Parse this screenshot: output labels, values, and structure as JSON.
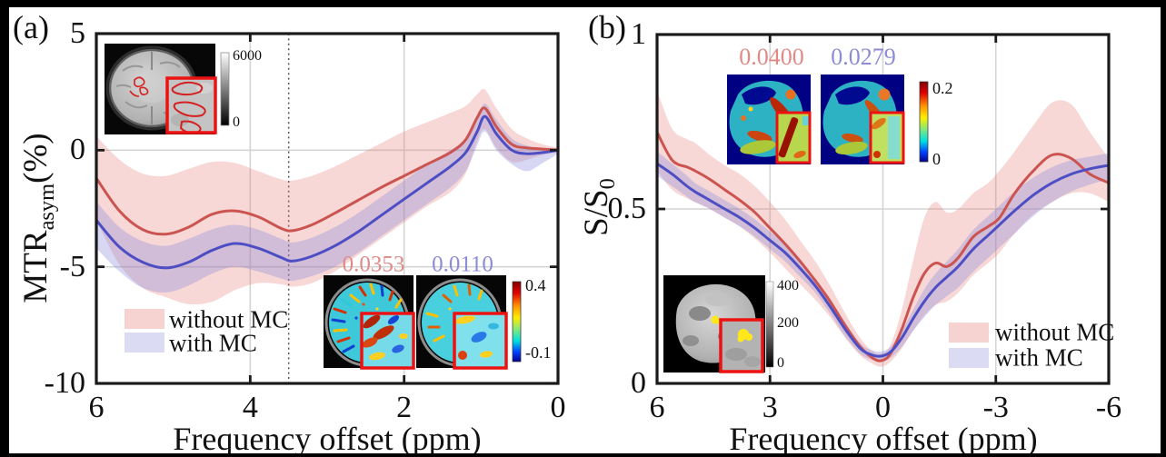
{
  "figure": {
    "panel_a": {
      "tag": "(a)",
      "x_axis_label": "Frequency offset (ppm)",
      "y_axis_label": {
        "base": "MTR",
        "sub": "asym",
        "unit": "(%)"
      },
      "legend": {
        "without": "without MC",
        "with": "with MC"
      },
      "anatomy_inset": {
        "cbar_max": "6000",
        "cbar_min": "0"
      },
      "map_inset": {
        "value_without": "0.0353",
        "value_with": "0.0110",
        "cbar_max": "0.4",
        "cbar_min": "-0.1"
      }
    },
    "panel_b": {
      "tag": "(b)",
      "x_axis_label": "Frequency offset (ppm)",
      "y_axis_label": {
        "base": "S/S",
        "sub": "0"
      },
      "legend": {
        "without": "without MC",
        "with": "with MC"
      },
      "map_inset": {
        "value_without": "0.0400",
        "value_with": "0.0279",
        "cbar_max": "0.2",
        "cbar_min": "0"
      },
      "anatomy_inset": {
        "cbar_max": "400",
        "cbar_mid": "200",
        "cbar_min": "0"
      }
    },
    "colors": {
      "line_without_mc": "#cc5450",
      "line_with_mc": "#4e4ec4",
      "band_without_mc": "rgba(227,125,120,0.30)",
      "band_with_mc": "rgba(135,135,222,0.33)",
      "value_text_without": "#e08a88",
      "value_text_with": "#8c8cd6"
    }
  },
  "chart_data": [
    {
      "id": "a",
      "type": "line",
      "title": "",
      "xlabel": "Frequency offset (ppm)",
      "ylabel": "MTR_asym (%)",
      "xlim": [
        6,
        0
      ],
      "ylim": [
        -10,
        5
      ],
      "xticks": [
        6,
        4,
        2,
        0
      ],
      "xtick_labels": [
        "6",
        "4",
        "2",
        "0"
      ],
      "yticks": [
        5,
        0,
        -5,
        -10
      ],
      "ytick_labels": [
        "5",
        "0",
        "-5",
        "-10"
      ],
      "xgrid": [
        4,
        2
      ],
      "ygrid": [
        0,
        -5
      ],
      "vline_dashed": 3.5,
      "legend_position": "lower left",
      "x": [
        6,
        5.7,
        5.4,
        5.1,
        4.8,
        4.5,
        4.2,
        3.9,
        3.6,
        3.45,
        3.2,
        2.9,
        2.6,
        2.3,
        2.0,
        1.7,
        1.4,
        1.2,
        1.05,
        0.95,
        0.8,
        0.6,
        0.4,
        0.2,
        0
      ],
      "series": [
        {
          "name": "without MC",
          "color": "#cc5450",
          "band_color": "rgba(227,125,120,0.30)",
          "values": [
            -1.2,
            -2.6,
            -3.4,
            -3.6,
            -3.3,
            -2.75,
            -2.6,
            -2.85,
            -3.35,
            -3.45,
            -3.2,
            -2.7,
            -2.15,
            -1.6,
            -1.1,
            -0.6,
            -0.1,
            0.45,
            1.4,
            1.8,
            1.0,
            0.25,
            0.1,
            0.05,
            0
          ],
          "band_upper": [
            0.6,
            -0.4,
            -1.0,
            -1.1,
            -0.8,
            -0.5,
            -0.55,
            -0.9,
            -1.25,
            -1.3,
            -1.1,
            -0.7,
            -0.2,
            0.3,
            0.8,
            1.2,
            1.6,
            1.9,
            2.4,
            2.6,
            1.8,
            0.9,
            0.5,
            0.25,
            0.1
          ],
          "band_lower": [
            -3.0,
            -4.9,
            -5.9,
            -6.3,
            -6.6,
            -6.5,
            -6.0,
            -5.7,
            -5.75,
            -5.85,
            -5.7,
            -5.2,
            -4.5,
            -3.8,
            -3.1,
            -2.4,
            -1.8,
            -1.0,
            0.4,
            0.9,
            0.1,
            -0.5,
            -0.4,
            -0.2,
            -0.1
          ]
        },
        {
          "name": "with MC",
          "color": "#4e4ec4",
          "band_color": "rgba(135,135,222,0.33)",
          "values": [
            -3.0,
            -4.15,
            -4.8,
            -5.05,
            -4.8,
            -4.3,
            -4.0,
            -4.2,
            -4.6,
            -4.75,
            -4.55,
            -4.1,
            -3.5,
            -2.8,
            -2.1,
            -1.4,
            -0.7,
            -0.1,
            0.8,
            1.45,
            0.7,
            0.0,
            -0.15,
            -0.1,
            0
          ],
          "band_upper": [
            -2.2,
            -3.3,
            -3.9,
            -4.1,
            -3.8,
            -3.4,
            -3.2,
            -3.4,
            -3.8,
            -3.95,
            -3.75,
            -3.3,
            -2.7,
            -2.0,
            -1.3,
            -0.6,
            0.0,
            0.5,
            1.4,
            2.0,
            1.3,
            0.5,
            0.2,
            0.1,
            0.1
          ],
          "band_lower": [
            -4.2,
            -5.2,
            -5.9,
            -6.1,
            -5.8,
            -5.3,
            -5.0,
            -5.2,
            -5.5,
            -5.6,
            -5.4,
            -5.0,
            -4.4,
            -3.7,
            -3.0,
            -2.3,
            -1.6,
            -0.9,
            0.2,
            0.8,
            0.0,
            -0.6,
            -0.9,
            -0.55,
            -0.15
          ]
        }
      ]
    },
    {
      "id": "b",
      "type": "line",
      "title": "",
      "xlabel": "Frequency offset (ppm)",
      "ylabel": "S/S_0",
      "xlim": [
        6,
        -6
      ],
      "ylim": [
        0,
        1
      ],
      "xticks": [
        6,
        3,
        0,
        -3,
        -6
      ],
      "xtick_labels": [
        "6",
        "3",
        "0",
        "-3",
        "-6"
      ],
      "yticks": [
        1,
        0.5,
        0
      ],
      "ytick_labels": [
        "1",
        "0.5",
        "0"
      ],
      "xgrid": [
        3,
        0,
        -3
      ],
      "ygrid": [
        0.5
      ],
      "vline_dashed": null,
      "legend_position": "lower right",
      "x": [
        6,
        5.6,
        5.2,
        5.0,
        4.6,
        4.2,
        3.8,
        3.4,
        3.0,
        2.6,
        2.2,
        1.8,
        1.4,
        1.0,
        0.6,
        0.3,
        0.05,
        -0.2,
        -0.5,
        -0.8,
        -1.1,
        -1.4,
        -1.7,
        -2.0,
        -2.4,
        -2.8,
        -3.1,
        -3.5,
        -4.0,
        -4.5,
        -5.0,
        -5.5,
        -6.0
      ],
      "series": [
        {
          "name": "without MC",
          "color": "#cc5450",
          "band_color": "rgba(227,125,120,0.30)",
          "values": [
            0.72,
            0.64,
            0.62,
            0.61,
            0.585,
            0.555,
            0.525,
            0.49,
            0.445,
            0.4,
            0.35,
            0.295,
            0.235,
            0.165,
            0.105,
            0.075,
            0.065,
            0.085,
            0.155,
            0.245,
            0.315,
            0.345,
            0.335,
            0.36,
            0.42,
            0.45,
            0.475,
            0.545,
            0.61,
            0.655,
            0.645,
            0.6,
            0.575
          ],
          "band_upper": [
            0.84,
            0.73,
            0.7,
            0.69,
            0.655,
            0.625,
            0.6,
            0.565,
            0.52,
            0.47,
            0.41,
            0.35,
            0.28,
            0.2,
            0.13,
            0.095,
            0.085,
            0.11,
            0.21,
            0.35,
            0.475,
            0.52,
            0.49,
            0.5,
            0.545,
            0.575,
            0.61,
            0.665,
            0.74,
            0.805,
            0.8,
            0.72,
            0.645
          ],
          "band_lower": [
            0.61,
            0.555,
            0.53,
            0.52,
            0.5,
            0.475,
            0.45,
            0.415,
            0.375,
            0.33,
            0.285,
            0.24,
            0.19,
            0.13,
            0.08,
            0.058,
            0.048,
            0.062,
            0.1,
            0.15,
            0.195,
            0.225,
            0.235,
            0.26,
            0.31,
            0.345,
            0.375,
            0.43,
            0.485,
            0.52,
            0.545,
            0.545,
            0.52
          ]
        },
        {
          "name": "with MC",
          "color": "#4e4ec4",
          "band_color": "rgba(135,135,222,0.33)",
          "values": [
            0.63,
            0.6,
            0.565,
            0.55,
            0.525,
            0.5,
            0.475,
            0.445,
            0.41,
            0.375,
            0.33,
            0.28,
            0.22,
            0.155,
            0.1,
            0.082,
            0.078,
            0.09,
            0.13,
            0.185,
            0.235,
            0.275,
            0.305,
            0.335,
            0.385,
            0.425,
            0.455,
            0.495,
            0.54,
            0.575,
            0.6,
            0.615,
            0.625
          ],
          "band_upper": [
            0.665,
            0.63,
            0.595,
            0.575,
            0.55,
            0.525,
            0.5,
            0.47,
            0.435,
            0.4,
            0.355,
            0.3,
            0.24,
            0.175,
            0.115,
            0.095,
            0.092,
            0.105,
            0.15,
            0.21,
            0.27,
            0.315,
            0.35,
            0.385,
            0.44,
            0.48,
            0.51,
            0.55,
            0.59,
            0.62,
            0.64,
            0.65,
            0.66
          ],
          "band_lower": [
            0.595,
            0.565,
            0.535,
            0.52,
            0.5,
            0.475,
            0.45,
            0.42,
            0.385,
            0.35,
            0.305,
            0.26,
            0.2,
            0.135,
            0.085,
            0.068,
            0.063,
            0.073,
            0.105,
            0.15,
            0.19,
            0.225,
            0.25,
            0.275,
            0.32,
            0.36,
            0.39,
            0.43,
            0.48,
            0.52,
            0.55,
            0.57,
            0.585
          ]
        }
      ]
    }
  ]
}
